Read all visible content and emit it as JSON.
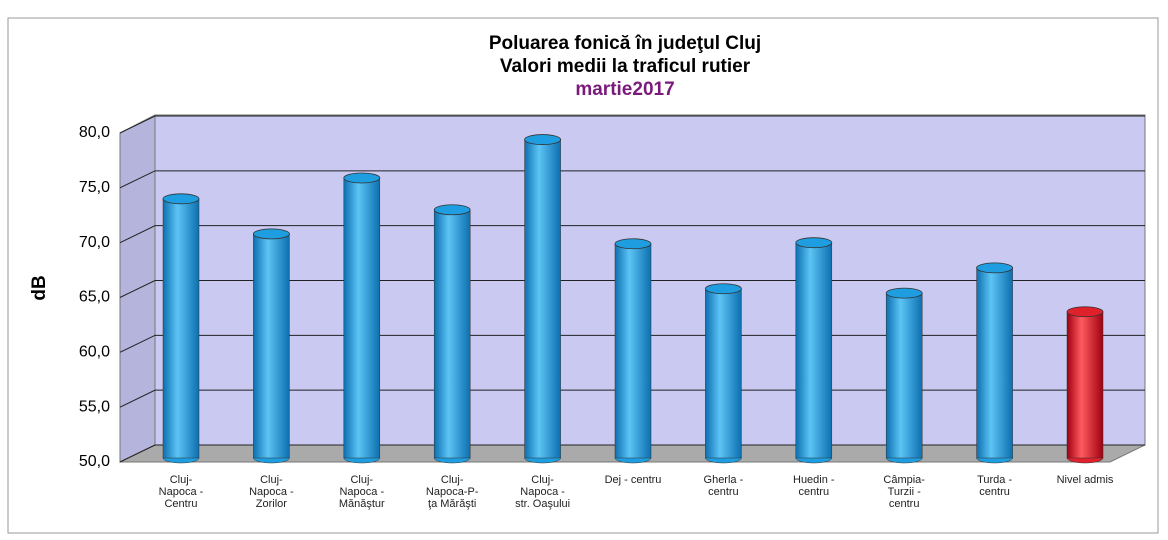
{
  "chart_data": {
    "type": "bar",
    "title": "Poluarea fonică în judeţul Cluj",
    "subtitle": "Valori medii la traficul rutier",
    "period": "martie2017",
    "y_label": "dB",
    "categories": [
      "Cluj-\nNapoca -\nCentru",
      "Cluj-\nNapoca -\nZorilor",
      "Cluj-\nNapoca -\nMănăştur",
      "Cluj-\nNapoca-P-\nţa Mărăşti",
      "Cluj-\nNapoca -\nstr. Oaşului",
      "Dej - centru",
      "Gherla -\ncentru",
      "Huedin -\ncentru",
      "Câmpia-\nTurzii -\ncentru",
      "Turda -\ncentru",
      "Nivel admis"
    ],
    "values": [
      74.0,
      70.8,
      75.9,
      73.0,
      79.4,
      69.9,
      65.8,
      70.0,
      65.4,
      67.7,
      63.7
    ],
    "colors": [
      "#1e9ee0",
      "#1e9ee0",
      "#1e9ee0",
      "#1e9ee0",
      "#1e9ee0",
      "#1e9ee0",
      "#1e9ee0",
      "#1e9ee0",
      "#1e9ee0",
      "#1e9ee0",
      "#e0202a"
    ],
    "ylim": [
      50,
      80
    ],
    "yticks": [
      {
        "value": 50,
        "label": "50,0"
      },
      {
        "value": 55,
        "label": "55,0"
      },
      {
        "value": 60,
        "label": "60,0"
      },
      {
        "value": 65,
        "label": "65,0"
      },
      {
        "value": 70,
        "label": "70,0"
      },
      {
        "value": 75,
        "label": "75,0"
      },
      {
        "value": 80,
        "label": "80,0"
      }
    ],
    "grid": true
  }
}
